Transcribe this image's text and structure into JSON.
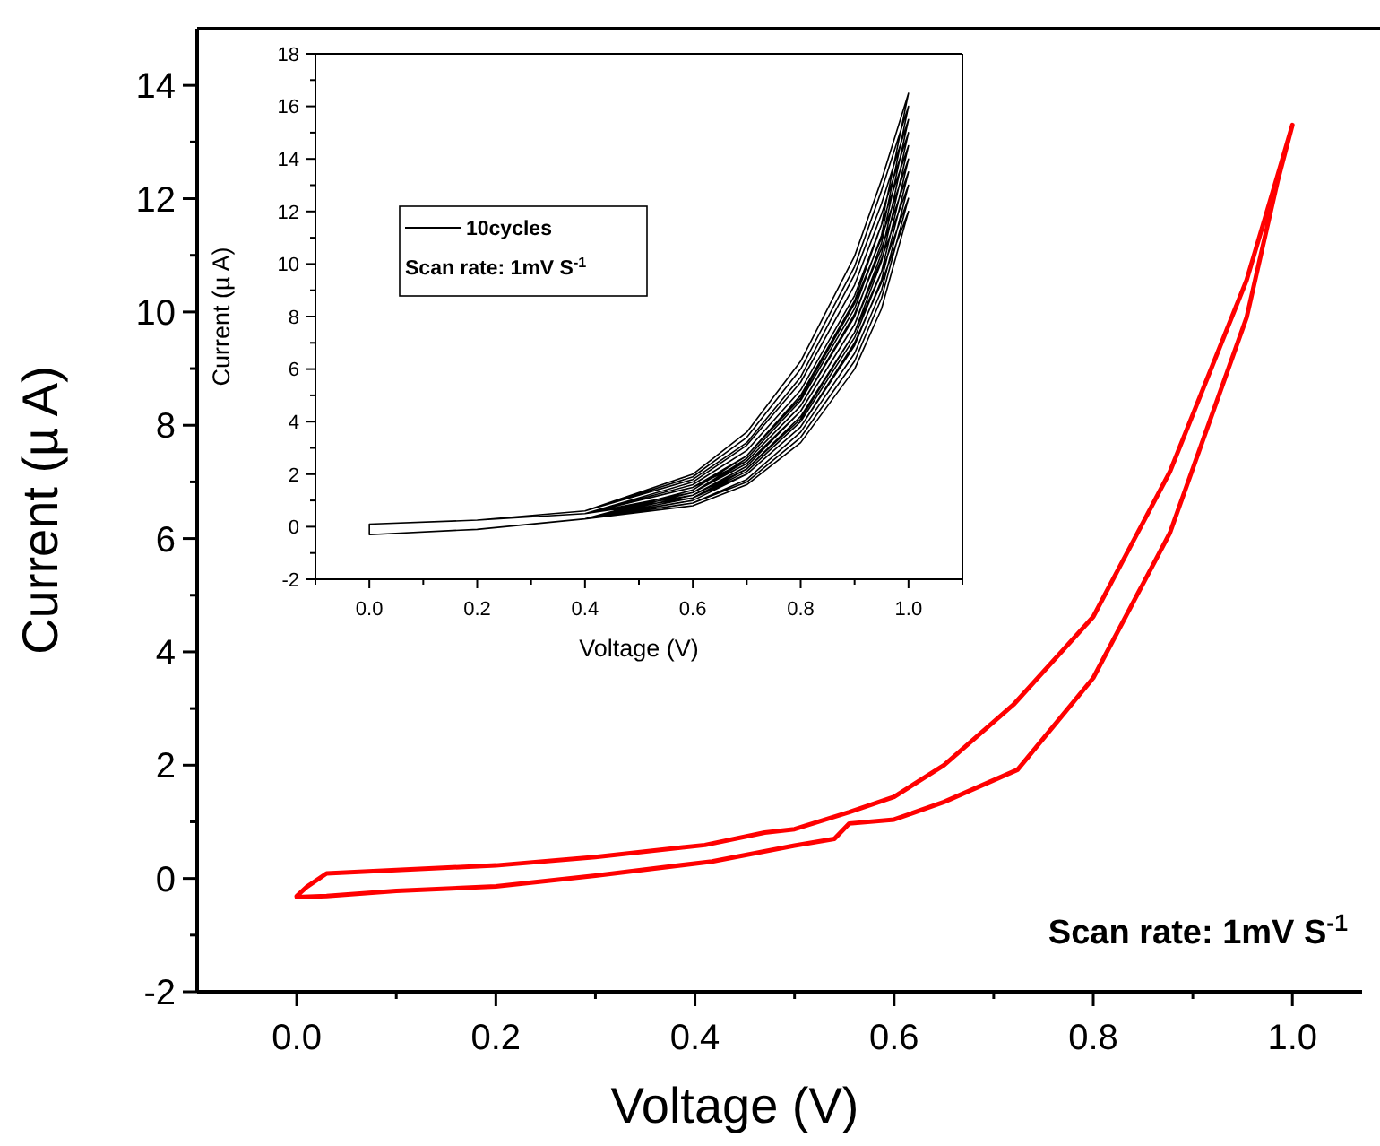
{
  "chart_data": [
    {
      "type": "line",
      "xlabel": "Voltage (V)",
      "ylabel": "Current (µ A)",
      "xlim": [
        -0.1,
        1.07
      ],
      "ylim": [
        -2,
        15
      ],
      "xticks": [
        {
          "value": 0,
          "label": "0.0"
        },
        {
          "value": 0.1,
          "label": null
        },
        0.2,
        {
          "value": 0.3,
          "label": null
        },
        0.4,
        {
          "value": 0.5,
          "label": null
        },
        0.6,
        {
          "value": 0.7,
          "label": null
        },
        0.8,
        {
          "value": 0.9,
          "label": null
        },
        {
          "value": 1,
          "label": "1.0"
        }
      ],
      "yticks": [
        -2,
        {
          "value": -1,
          "label": null
        },
        0,
        {
          "value": 1,
          "label": null
        },
        2,
        {
          "value": 3,
          "label": null
        },
        4,
        {
          "value": 5,
          "label": null
        },
        6,
        {
          "value": 7,
          "label": null
        },
        8,
        {
          "value": 9,
          "label": null
        },
        10,
        {
          "value": 11,
          "label": null
        },
        12,
        {
          "value": 13,
          "label": null
        },
        14
      ],
      "grid": false,
      "marker": "none",
      "line_style": "solid",
      "annotations": [
        "Scan rate: 1mV S$^{-1}$"
      ],
      "series": [
        {
          "color": "#ff0000",
          "x": [
            0,
            0.01,
            0.03,
            0.1,
            0.2,
            0.3,
            0.41,
            0.47,
            0.5,
            0.555,
            0.6,
            0.65,
            0.72,
            0.8,
            0.877,
            0.954,
            0.985,
            1.0,
            0.985,
            0.954,
            0.877,
            0.8,
            0.724,
            0.65,
            0.6,
            0.555,
            0.54,
            0.5,
            0.417,
            0.3,
            0.2,
            0.1,
            0.03,
            0.0
          ],
          "values": [
            -0.31,
            -0.15,
            0.09,
            0.15,
            0.23,
            0.38,
            0.59,
            0.81,
            0.87,
            1.17,
            1.44,
            2.0,
            3.07,
            4.62,
            7.18,
            10.56,
            12.4,
            13.3,
            12.3,
            9.9,
            6.1,
            3.54,
            1.92,
            1.35,
            1.04,
            0.97,
            0.7,
            0.58,
            0.3,
            0.05,
            -0.14,
            -0.22,
            -0.31,
            -0.33
          ]
        }
      ]
    },
    {
      "type": "line",
      "xlabel": "Voltage (V)",
      "ylabel": "Current (µ A)",
      "xlim": [
        -0.1,
        1.1
      ],
      "ylim": [
        -2,
        18
      ],
      "xticks": [
        {
          "value": -0.1,
          "label": null
        },
        {
          "value": 0,
          "label": "0.0"
        },
        {
          "value": 0.1,
          "label": null
        },
        0.2,
        {
          "value": 0.3,
          "label": null
        },
        0.4,
        {
          "value": 0.5,
          "label": null
        },
        0.6,
        {
          "value": 0.7,
          "label": null
        },
        0.8,
        {
          "value": 0.9,
          "label": null
        },
        {
          "value": 1,
          "label": "1.0"
        },
        {
          "value": 1.1,
          "label": null
        }
      ],
      "yticks": [
        -2,
        {
          "value": -1,
          "label": null
        },
        0,
        {
          "value": 1,
          "label": null
        },
        2,
        {
          "value": 3,
          "label": null
        },
        4,
        {
          "value": 5,
          "label": null
        },
        6,
        {
          "value": 7,
          "label": null
        },
        8,
        {
          "value": 9,
          "label": null
        },
        10,
        {
          "value": 11,
          "label": null
        },
        12,
        {
          "value": 13,
          "label": null
        },
        14,
        {
          "value": 15,
          "label": null
        },
        16,
        {
          "value": 17,
          "label": null
        },
        18
      ],
      "grid": false,
      "marker": "none",
      "line_style": "solid",
      "legend": "top left",
      "annotations": [
        "Scan rate: 1mV S$^{-1}$"
      ],
      "series": [
        {
          "name": "10cycles",
          "color": "#000000",
          "x": [
            0,
            0.2,
            0.4,
            0.6,
            0.7,
            0.8,
            0.9,
            0.95,
            1.0,
            0.95,
            0.9,
            0.8,
            0.7,
            0.6,
            0.4,
            0.2,
            0,
            0,
            0.2,
            0.4,
            0.6,
            0.7,
            0.8,
            0.9,
            0.95,
            1.0,
            0.95,
            0.9,
            0.8,
            0.7,
            0.6,
            0.4,
            0.2,
            0,
            0,
            0.2,
            0.4,
            0.6,
            0.7,
            0.8,
            0.9,
            0.95,
            1.0,
            0.95,
            0.9,
            0.8,
            0.7,
            0.6,
            0.4,
            0.2,
            0,
            0,
            0.2,
            0.4,
            0.6,
            0.7,
            0.8,
            0.9,
            0.95,
            1.0,
            0.95,
            0.9,
            0.8,
            0.7,
            0.6,
            0.4,
            0.2,
            0,
            0,
            0.2,
            0.4,
            0.6,
            0.7,
            0.8,
            0.9,
            0.95,
            1.0,
            0.95,
            0.9,
            0.8,
            0.7,
            0.6,
            0.4,
            0.2,
            0,
            0,
            0.2,
            0.4,
            0.6,
            0.7,
            0.8,
            0.9,
            0.95,
            1.0,
            0.95,
            0.9,
            0.8,
            0.7,
            0.6,
            0.4,
            0.2,
            0,
            0,
            0.2,
            0.4,
            0.6,
            0.7,
            0.8,
            0.9,
            0.95,
            1.0,
            0.95,
            0.9,
            0.8,
            0.7,
            0.6,
            0.4,
            0.2,
            0,
            0,
            0.2,
            0.4,
            0.6,
            0.7,
            0.8,
            0.9,
            0.95,
            1.0,
            0.95,
            0.9,
            0.8,
            0.7,
            0.6,
            0.4,
            0.2,
            0,
            0,
            0.2,
            0.4,
            0.6,
            0.7,
            0.8,
            0.9,
            0.95,
            1.0,
            0.95,
            0.9,
            0.8,
            0.7,
            0.6,
            0.4,
            0.2,
            0,
            0,
            0.2,
            0.4,
            0.6,
            0.7,
            0.8,
            0.9,
            0.95,
            1.0,
            0.95,
            0.9,
            0.8,
            0.7,
            0.6,
            0.4,
            0.2,
            0
          ],
          "values": [
            0.1,
            0.25,
            0.6,
            2.0,
            3.6,
            6.3,
            10.3,
            13.2,
            16.5,
            11.5,
            8.6,
            5.0,
            2.7,
            1.4,
            0.3,
            -0.1,
            -0.3,
            0.1,
            0.25,
            0.6,
            1.9,
            3.4,
            6.0,
            9.9,
            12.8,
            16.0,
            11.1,
            8.3,
            4.8,
            2.6,
            1.3,
            0.3,
            -0.1,
            -0.3,
            0.1,
            0.25,
            0.6,
            1.8,
            3.2,
            5.7,
            9.6,
            12.3,
            15.5,
            10.8,
            8.0,
            4.6,
            2.5,
            1.3,
            0.3,
            -0.1,
            -0.3,
            0.1,
            0.25,
            0.5,
            1.7,
            3.1,
            5.5,
            9.2,
            11.9,
            15.0,
            10.4,
            7.7,
            4.4,
            2.3,
            1.2,
            0.3,
            -0.1,
            -0.3,
            0.1,
            0.25,
            0.5,
            1.6,
            2.9,
            5.2,
            8.8,
            11.5,
            14.5,
            10.1,
            7.4,
            4.2,
            2.2,
            1.1,
            0.3,
            -0.1,
            -0.3,
            0.1,
            0.25,
            0.5,
            1.5,
            2.7,
            4.9,
            8.5,
            11.0,
            14.0,
            9.7,
            7.2,
            4.0,
            2.1,
            1.1,
            0.3,
            -0.1,
            -0.3,
            0.1,
            0.25,
            0.5,
            1.5,
            2.5,
            4.6,
            8.1,
            10.6,
            13.5,
            9.4,
            6.9,
            3.8,
            2.0,
            1.0,
            0.3,
            -0.1,
            -0.3,
            0.1,
            0.25,
            0.5,
            1.3,
            2.4,
            4.4,
            7.7,
            10.2,
            13.0,
            9.0,
            6.6,
            3.6,
            1.8,
            0.9,
            0.3,
            -0.1,
            -0.3,
            0.1,
            0.25,
            0.5,
            1.2,
            2.2,
            4.1,
            7.4,
            9.7,
            12.5,
            8.7,
            6.3,
            3.4,
            1.7,
            0.9,
            0.3,
            -0.1,
            -0.3,
            0.1,
            0.25,
            0.5,
            1.1,
            2.0,
            3.8,
            7.0,
            9.3,
            12.0,
            8.3,
            6.0,
            3.2,
            1.6,
            0.8,
            0.3,
            -0.1,
            -0.3
          ]
        }
      ]
    }
  ]
}
